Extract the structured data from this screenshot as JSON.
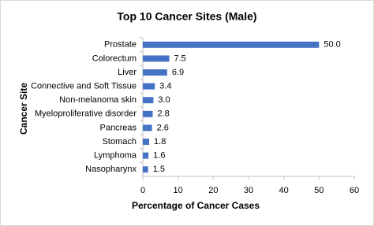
{
  "chart_data": {
    "type": "bar",
    "orientation": "horizontal",
    "title": "Top 10 Cancer Sites (Male)",
    "x_label": "Percentage of Cancer Cases",
    "y_label": "Cancer Site",
    "categories": [
      "Prostate",
      "Colorectum",
      "Liver",
      "Connective and Soft Tissue",
      "Non-melanoma skin",
      "Myeloproliferative disorder",
      "Pancreas",
      "Stomach",
      "Lymphoma",
      "Nasopharynx"
    ],
    "values": [
      50.0,
      7.5,
      6.9,
      3.4,
      3.0,
      2.8,
      2.6,
      1.8,
      1.6,
      1.5
    ],
    "value_labels": [
      "50.0",
      "7.5",
      "6.9",
      "3.4",
      "3.0",
      "2.8",
      "2.6",
      "1.8",
      "1.6",
      "1.5"
    ],
    "color": "#4472c4",
    "xlim": [
      0,
      60
    ],
    "xticks": [
      0,
      10,
      20,
      30,
      40,
      50,
      60
    ],
    "grid": false
  }
}
